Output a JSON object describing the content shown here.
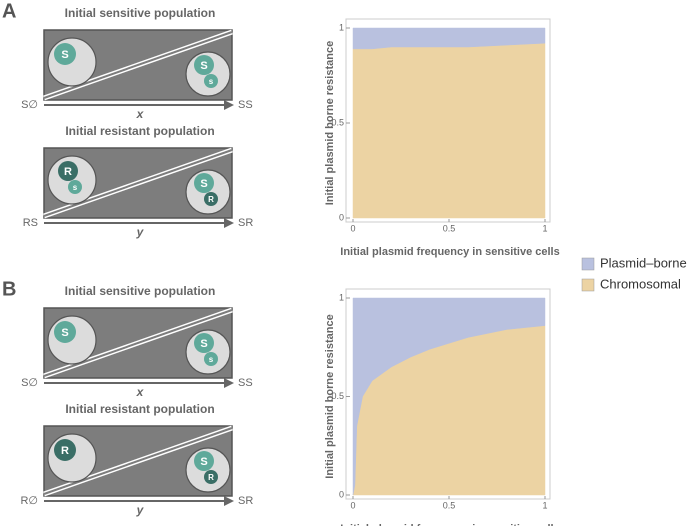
{
  "panels": [
    {
      "letter": "A",
      "diagrams": [
        {
          "title": "Initial sensitive population",
          "left_label": "S∅",
          "right_label": "SS",
          "variable": "x",
          "left_cells": [
            {
              "label": "S",
              "color": "#5fa99a"
            }
          ],
          "right_cells": [
            {
              "label": "S",
              "color": "#5fa99a"
            },
            {
              "label": "s",
              "color": "#5fa99a"
            }
          ]
        },
        {
          "title": "Initial resistant population",
          "left_label": "RS",
          "right_label": "SR",
          "variable": "y",
          "left_cells": [
            {
              "label": "R",
              "color": "#3a6e66"
            },
            {
              "label": "s",
              "color": "#5fa99a"
            }
          ],
          "right_cells": [
            {
              "label": "S",
              "color": "#5fa99a"
            },
            {
              "label": "R",
              "color": "#3a6e66"
            }
          ]
        }
      ]
    },
    {
      "letter": "B",
      "diagrams": [
        {
          "title": "Initial sensitive population",
          "left_label": "S∅",
          "right_label": "SS",
          "variable": "x",
          "left_cells": [
            {
              "label": "S",
              "color": "#5fa99a"
            }
          ],
          "right_cells": [
            {
              "label": "S",
              "color": "#5fa99a"
            },
            {
              "label": "s",
              "color": "#5fa99a"
            }
          ]
        },
        {
          "title": "Initial resistant population",
          "left_label": "R∅",
          "right_label": "SR",
          "variable": "y",
          "left_cells": [
            {
              "label": "R",
              "color": "#3a6e66"
            }
          ],
          "right_cells": [
            {
              "label": "S",
              "color": "#5fa99a"
            },
            {
              "label": "R",
              "color": "#3a6e66"
            }
          ]
        }
      ]
    }
  ],
  "chart_data": [
    {
      "type": "area",
      "x_label": "Initial plasmid frequency in sensitive cells",
      "y_label": "Initial plasmid borne resistance",
      "x": [
        0,
        0.1,
        0.2,
        0.4,
        0.6,
        0.8,
        1
      ],
      "series": [
        {
          "name": "Chromosomal",
          "color": "#ecd3a3",
          "values": [
            0.89,
            0.89,
            0.9,
            0.9,
            0.9,
            0.91,
            0.92
          ]
        },
        {
          "name": "Plasmid–borne",
          "color": "#b9c1df",
          "values": [
            0.11,
            0.11,
            0.1,
            0.1,
            0.1,
            0.09,
            0.08
          ]
        }
      ],
      "xlim": [
        0,
        1
      ],
      "ylim": [
        0,
        1
      ],
      "xticks": [
        0,
        0.5,
        1
      ],
      "yticks": [
        0,
        0.5,
        1
      ]
    },
    {
      "type": "area",
      "x_label": "Initial plasmid frequency in sensitive cells",
      "y_label": "Initial plasmid borne resistance",
      "x": [
        0,
        0.01,
        0.02,
        0.05,
        0.1,
        0.2,
        0.3,
        0.4,
        0.5,
        0.6,
        0.7,
        0.8,
        0.9,
        1
      ],
      "series": [
        {
          "color": "#ecd3a3",
          "values": [
            0,
            0.05,
            0.35,
            0.5,
            0.58,
            0.65,
            0.7,
            0.74,
            0.77,
            0.8,
            0.82,
            0.84,
            0.85,
            0.86
          ]
        },
        {
          "color": "#b9c1df",
          "values": [
            1,
            0.95,
            0.65,
            0.5,
            0.42,
            0.35,
            0.3,
            0.26,
            0.23,
            0.2,
            0.18,
            0.16,
            0.15,
            0.14
          ]
        }
      ],
      "xlim": [
        0,
        1
      ],
      "ylim": [
        0,
        1
      ],
      "xticks": [
        0,
        0.5,
        1
      ],
      "yticks": [
        0,
        0.5,
        1
      ]
    }
  ]
}
